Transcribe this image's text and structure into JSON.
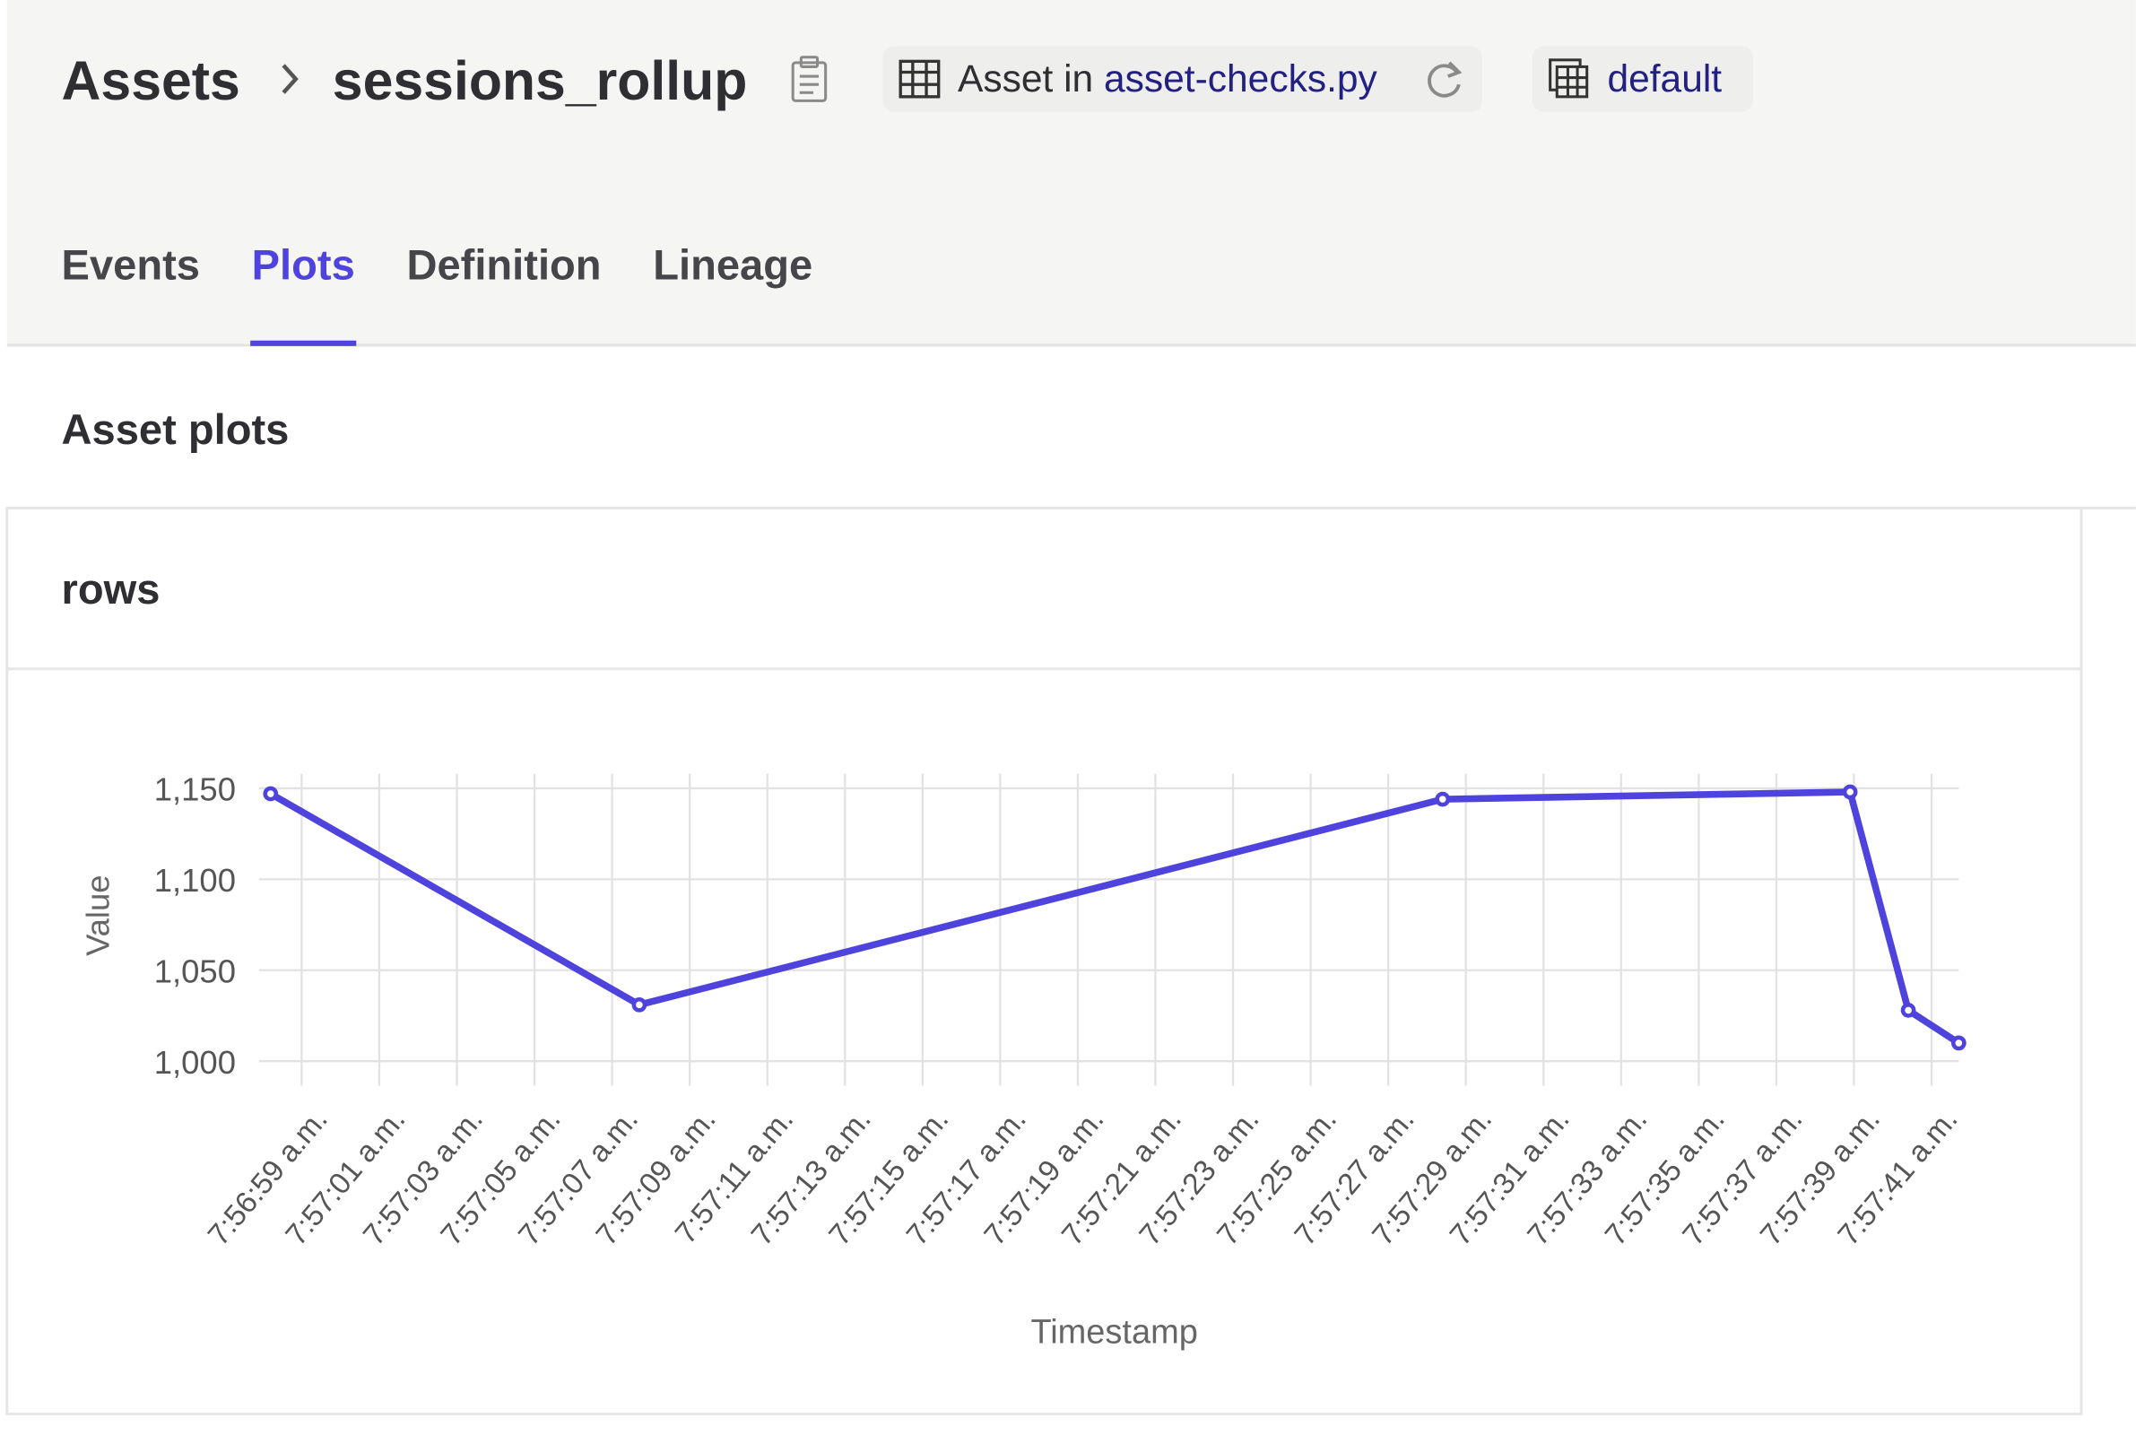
{
  "breadcrumb": {
    "root": "Assets",
    "asset": "sessions_rollup"
  },
  "header": {
    "location_prefix": "Asset in",
    "location_file": "asset-checks.py",
    "code_location": "default"
  },
  "tabs": [
    "Events",
    "Plots",
    "Definition",
    "Lineage"
  ],
  "active_tab": 1,
  "section_title": "Asset plots",
  "chart_data": {
    "type": "line",
    "title": "rows",
    "x_label": "Timestamp",
    "y_label": "Value",
    "x": [
      "7:56:58.2",
      "7:57:07.7",
      "7:57:28.4",
      "7:57:38.9",
      "7:57:40.4",
      "7:57:41.7"
    ],
    "values": [
      1147,
      1031,
      1144,
      1148,
      1028,
      1010
    ],
    "color": "#4f43dd",
    "xlim": [
      "7:56:57.9",
      "7:57:41.7"
    ],
    "xticks": [
      {
        "value": "7:56:59",
        "label": "7:56:59 a.m."
      },
      {
        "value": "7:57:01",
        "label": "7:57:01 a.m."
      },
      {
        "value": "7:57:03",
        "label": "7:57:03 a.m."
      },
      {
        "value": "7:57:05",
        "label": "7:57:05 a.m."
      },
      {
        "value": "7:57:07",
        "label": "7:57:07 a.m."
      },
      {
        "value": "7:57:09",
        "label": "7:57:09 a.m."
      },
      {
        "value": "7:57:11",
        "label": "7:57:11 a.m."
      },
      {
        "value": "7:57:13",
        "label": "7:57:13 a.m."
      },
      {
        "value": "7:57:15",
        "label": "7:57:15 a.m."
      },
      {
        "value": "7:57:17",
        "label": "7:57:17 a.m."
      },
      {
        "value": "7:57:19",
        "label": "7:57:19 a.m."
      },
      {
        "value": "7:57:21",
        "label": "7:57:21 a.m."
      },
      {
        "value": "7:57:23",
        "label": "7:57:23 a.m."
      },
      {
        "value": "7:57:25",
        "label": "7:57:25 a.m."
      },
      {
        "value": "7:57:27",
        "label": "7:57:27 a.m."
      },
      {
        "value": "7:57:29",
        "label": "7:57:29 a.m."
      },
      {
        "value": "7:57:31",
        "label": "7:57:31 a.m."
      },
      {
        "value": "7:57:33",
        "label": "7:57:33 a.m."
      },
      {
        "value": "7:57:35",
        "label": "7:57:35 a.m."
      },
      {
        "value": "7:57:37",
        "label": "7:57:37 a.m."
      },
      {
        "value": "7:57:39",
        "label": "7:57:39 a.m."
      },
      {
        "value": "7:57:41",
        "label": "7:57:41 a.m."
      }
    ],
    "ylim": [
      1000,
      1158
    ],
    "yticks": [
      {
        "value": 1000,
        "label": "1,000"
      },
      {
        "value": 1050,
        "label": "1,050"
      },
      {
        "value": 1100,
        "label": "1,100"
      },
      {
        "value": 1150,
        "label": "1,150"
      }
    ],
    "grid": true
  }
}
